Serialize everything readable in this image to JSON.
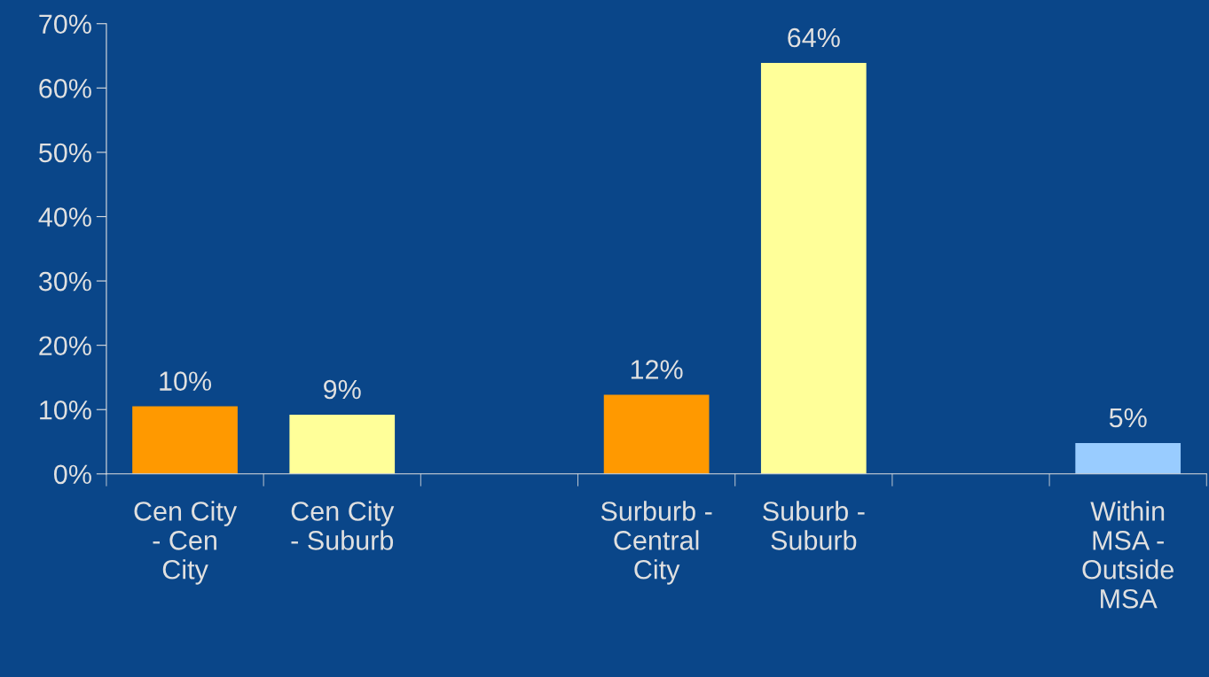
{
  "chart_data": {
    "type": "bar",
    "categories": [
      "Cen City\n- Cen\nCity",
      "Cen City\n- Suburb",
      null,
      "Surburb -\nCentral\nCity",
      "Suburb -\nSuburb",
      null,
      "Within\nMSA -\nOutside\nMSA"
    ],
    "values": [
      10.5,
      9.2,
      null,
      12.3,
      63.9,
      null,
      4.8
    ],
    "colors": [
      "#ff9900",
      "#ffff99",
      null,
      "#ff9900",
      "#ffff99",
      null,
      "#99ccff"
    ],
    "value_labels": [
      "10%",
      "9%",
      null,
      "12%",
      "64%",
      null,
      "5%"
    ],
    "ylim": [
      0,
      70
    ],
    "yticks": [
      {
        "value": 0,
        "label": "0%"
      },
      {
        "value": 10,
        "label": "10%"
      },
      {
        "value": 20,
        "label": "20%"
      },
      {
        "value": 30,
        "label": "30%"
      },
      {
        "value": 40,
        "label": "40%"
      },
      {
        "value": 50,
        "label": "50%"
      },
      {
        "value": 60,
        "label": "60%"
      },
      {
        "value": 70,
        "label": "70%"
      }
    ],
    "grid": false,
    "legend": false
  }
}
